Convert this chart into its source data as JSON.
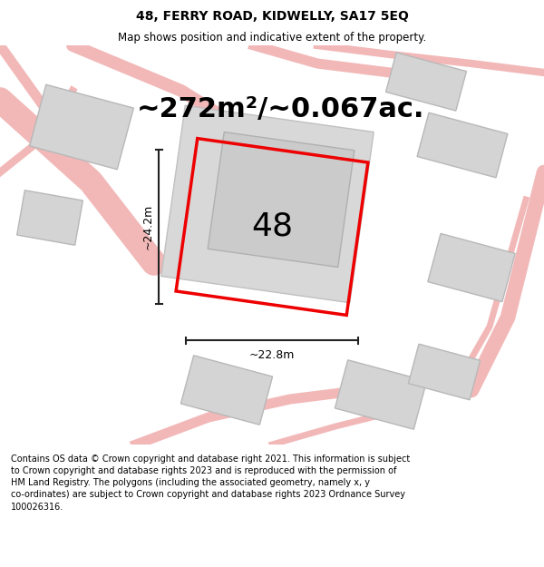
{
  "title_line1": "48, FERRY ROAD, KIDWELLY, SA17 5EQ",
  "title_line2": "Map shows position and indicative extent of the property.",
  "area_text": "~272m²/~0.067ac.",
  "label_48": "48",
  "dim_width": "~22.8m",
  "dim_height": "~24.2m",
  "footer_text": "Contains OS data © Crown copyright and database right 2021. This information is subject to Crown copyright and database rights 2023 and is reproduced with the permission of HM Land Registry. The polygons (including the associated geometry, namely x, y co-ordinates) are subject to Crown copyright and database rights 2023 Ordnance Survey 100026316.",
  "background_color": "#ffffff",
  "map_bg_color": "#f0f0f0",
  "road_color": "#f2b8b8",
  "building_fill": "#d4d4d4",
  "building_edge": "#b8b8b8",
  "plot_color": "#ee0000",
  "dim_line_color": "#222222",
  "title_fontsize": 10,
  "subtitle_fontsize": 8.5,
  "area_fontsize": 22,
  "label_fontsize": 26,
  "dim_fontsize": 9,
  "footer_fontsize": 7
}
